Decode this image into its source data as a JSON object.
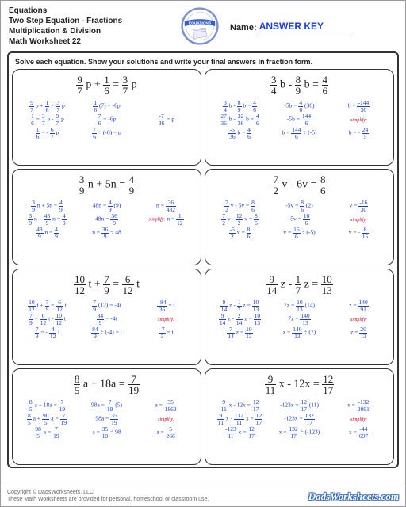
{
  "header": {
    "line1": "Equations",
    "line2": "Two Step Equation - Fractions",
    "line3": "Multiplication & Division",
    "line4": "Math Worksheet 22",
    "name_label": "Name:",
    "answer_key": "ANSWER KEY"
  },
  "instructions": "Solve each equation.  Show your solutions and write your final answers in fraction form.",
  "logo": {
    "banner_text": "EQUATIONS",
    "banner_color": "#3a5fc8",
    "ring_color": "#7a8fd8"
  },
  "problems": [
    {
      "eq_html": "<span class='frac eq-frac'><span class='n'>9</span><span class='d'>7</span></span> p + <span class='frac eq-frac'><span class='n'>1</span><span class='d'>6</span></span> = <span class='frac eq-frac'><span class='n'>3</span><span class='d'>7</span></span> p",
      "rows": [
        [
          "<span class='frac'><span class='n'>9</span><span class='d'>7</span></span> p + <span class='frac'><span class='n'>1</span><span class='d'>6</span></span> = <span class='frac'><span class='n'>3</span><span class='d'>7</span></span> p",
          "<span class='frac'><span class='n'>1</span><span class='d'>6</span></span> (7) = -6p",
          ""
        ],
        [
          "<span class='frac'><span class='n'>1</span><span class='d'>6</span></span> = <span class='frac'><span class='n'>3</span><span class='d'>7</span></span> p - <span class='frac'><span class='n'>9</span><span class='d'>7</span></span> p",
          "<span class='frac'><span class='n'>7</span><span class='d'>6</span></span> = -6p",
          "<span class='frac'><span class='n'>-7</span><span class='d'>36</span></span> = p"
        ],
        [
          "<span class='frac'><span class='n'>1</span><span class='d'>6</span></span> = - <span class='frac'><span class='n'>6</span><span class='d'>7</span></span> p",
          "<span class='frac'><span class='n'>7</span><span class='d'>6</span></span> ÷ (-6) = p",
          ""
        ]
      ]
    },
    {
      "eq_html": "<span class='frac eq-frac'><span class='n'>3</span><span class='d'>4</span></span> b - <span class='frac eq-frac'><span class='n'>8</span><span class='d'>9</span></span> b = <span class='frac eq-frac'><span class='n'>4</span><span class='d'>6</span></span>",
      "rows": [
        [
          "<span class='frac'><span class='n'>3</span><span class='d'>4</span></span> b - <span class='frac'><span class='n'>8</span><span class='d'>9</span></span> b = <span class='frac'><span class='n'>4</span><span class='d'>6</span></span>",
          "-5b = <span class='frac'><span class='n'>4</span><span class='d'>6</span></span> (36)",
          "b = <span class='frac'><span class='n'>-144</span><span class='d'>30</span></span>"
        ],
        [
          "<span class='frac'><span class='n'>27</span><span class='d'>36</span></span> b - <span class='frac'><span class='n'>32</span><span class='d'>36</span></span> b = <span class='frac'><span class='n'>4</span><span class='d'>6</span></span>",
          "-5b = <span class='frac'><span class='n'>144</span><span class='d'>6</span></span>",
          "<span class='simplify'>simplify:</span>"
        ],
        [
          "<span class='frac'><span class='n'>-5</span><span class='d'>36</span></span> b = <span class='frac'><span class='n'>4</span><span class='d'>6</span></span>",
          "b = <span class='frac'><span class='n'>144</span><span class='d'>6</span></span> ÷ (-5)",
          "b = - <span class='frac'><span class='n'>24</span><span class='d'>5</span></span>"
        ]
      ]
    },
    {
      "eq_html": "<span class='frac eq-frac'><span class='n'>3</span><span class='d'>9</span></span> n + 5n = <span class='frac eq-frac'><span class='n'>4</span><span class='d'>9</span></span>",
      "rows": [
        [
          "<span class='frac'><span class='n'>3</span><span class='d'>9</span></span> n + 5n = <span class='frac'><span class='n'>4</span><span class='d'>9</span></span>",
          "48n = <span class='frac'><span class='n'>4</span><span class='d'>9</span></span> (9)",
          "n = <span class='frac'><span class='n'>36</span><span class='d'>432</span></span>"
        ],
        [
          "<span class='frac'><span class='n'>3</span><span class='d'>9</span></span> n + <span class='frac'><span class='n'>45</span><span class='d'>9</span></span> n = <span class='frac'><span class='n'>4</span><span class='d'>9</span></span>",
          "48n = <span class='frac'><span class='n'>36</span><span class='d'>9</span></span>",
          "<span class='simplify'>simplify:</span> n = <span class='frac'><span class='n'>1</span><span class='d'>12</span></span>"
        ],
        [
          "<span class='frac'><span class='n'>48</span><span class='d'>9</span></span> n = <span class='frac'><span class='n'>4</span><span class='d'>9</span></span>",
          "n = <span class='frac'><span class='n'>36</span><span class='d'>9</span></span> ÷ 48",
          ""
        ]
      ]
    },
    {
      "eq_html": "<span class='frac eq-frac'><span class='n'>7</span><span class='d'>2</span></span> v - 6v = <span class='frac eq-frac'><span class='n'>8</span><span class='d'>6</span></span>",
      "rows": [
        [
          "<span class='frac'><span class='n'>7</span><span class='d'>2</span></span> v - 6v = <span class='frac'><span class='n'>8</span><span class='d'>6</span></span>",
          "-5v = <span class='frac'><span class='n'>8</span><span class='d'>6</span></span> (2)",
          "v = <span class='frac'><span class='n'>-16</span><span class='d'>30</span></span>"
        ],
        [
          "<span class='frac'><span class='n'>7</span><span class='d'>2</span></span> v - <span class='frac'><span class='n'>12</span><span class='d'>2</span></span> v = <span class='frac'><span class='n'>8</span><span class='d'>6</span></span>",
          "-5v = <span class='frac'><span class='n'>16</span><span class='d'>6</span></span>",
          "<span class='simplify'>simplify:</span>"
        ],
        [
          "<span class='frac'><span class='n'>-5</span><span class='d'>2</span></span> v = <span class='frac'><span class='n'>8</span><span class='d'>6</span></span>",
          "v = <span class='frac'><span class='n'>16</span><span class='d'>6</span></span> ÷ (-5)",
          "v = - <span class='frac'><span class='n'>8</span><span class='d'>15</span></span>"
        ]
      ]
    },
    {
      "eq_html": "<span class='frac eq-frac'><span class='n'>10</span><span class='d'>12</span></span> t + <span class='frac eq-frac'><span class='n'>7</span><span class='d'>9</span></span> = <span class='frac eq-frac'><span class='n'>6</span><span class='d'>12</span></span> t",
      "rows": [
        [
          "<span class='frac'><span class='n'>10</span><span class='d'>12</span></span> t + <span class='frac'><span class='n'>7</span><span class='d'>9</span></span> = <span class='frac'><span class='n'>6</span><span class='d'>12</span></span> t",
          "<span class='frac'><span class='n'>7</span><span class='d'>9</span></span> (12) = -4t",
          "<span class='frac'><span class='n'>-84</span><span class='d'>36</span></span> = t"
        ],
        [
          "<span class='frac'><span class='n'>7</span><span class='d'>9</span></span> = <span class='frac'><span class='n'>6</span><span class='d'>12</span></span> t - <span class='frac'><span class='n'>10</span><span class='d'>12</span></span> t",
          "<span class='frac'><span class='n'>84</span><span class='d'>9</span></span> = -4t",
          "<span class='simplify'>simplify:</span>"
        ],
        [
          "<span class='frac'><span class='n'>7</span><span class='d'>9</span></span> = - <span class='frac'><span class='n'>4</span><span class='d'>12</span></span> t",
          "<span class='frac'><span class='n'>84</span><span class='d'>9</span></span> ÷ (-4) = t",
          "<span class='frac'><span class='n'>-7</span><span class='d'>3</span></span> = t"
        ]
      ]
    },
    {
      "eq_html": "<span class='frac eq-frac'><span class='n'>9</span><span class='d'>14</span></span> z - <span class='frac eq-frac'><span class='n'>1</span><span class='d'>7</span></span> z = <span class='frac eq-frac'><span class='n'>10</span><span class='d'>13</span></span>",
      "rows": [
        [
          "<span class='frac'><span class='n'>9</span><span class='d'>14</span></span> z - <span class='frac'><span class='n'>1</span><span class='d'>7</span></span> z = <span class='frac'><span class='n'>10</span><span class='d'>13</span></span>",
          "7z = <span class='frac'><span class='n'>10</span><span class='d'>13</span></span> (14)",
          "z = <span class='frac'><span class='n'>140</span><span class='d'>91</span></span>"
        ],
        [
          "<span class='frac'><span class='n'>9</span><span class='d'>14</span></span> z - <span class='frac'><span class='n'>2</span><span class='d'>14</span></span> z = <span class='frac'><span class='n'>10</span><span class='d'>13</span></span>",
          "7z = <span class='frac'><span class='n'>140</span><span class='d'>13</span></span>",
          "<span class='simplify'>simplify:</span>"
        ],
        [
          "<span class='frac'><span class='n'>7</span><span class='d'>14</span></span> z = <span class='frac'><span class='n'>10</span><span class='d'>13</span></span>",
          "z = <span class='frac'><span class='n'>140</span><span class='d'>13</span></span> ÷ (7)",
          "z = <span class='frac'><span class='n'>20</span><span class='d'>13</span></span>"
        ]
      ]
    },
    {
      "eq_html": "<span class='frac eq-frac'><span class='n'>8</span><span class='d'>5</span></span> a + 18a = <span class='frac eq-frac'><span class='n'>7</span><span class='d'>19</span></span>",
      "rows": [
        [
          "<span class='frac'><span class='n'>8</span><span class='d'>5</span></span> a + 18a = <span class='frac'><span class='n'>7</span><span class='d'>19</span></span>",
          "98a = <span class='frac'><span class='n'>7</span><span class='d'>19</span></span> (5)",
          "a = <span class='frac'><span class='n'>35</span><span class='d'>1862</span></span>"
        ],
        [
          "<span class='frac'><span class='n'>8</span><span class='d'>5</span></span> a + <span class='frac'><span class='n'>90</span><span class='d'>5</span></span> a = <span class='frac'><span class='n'>7</span><span class='d'>19</span></span>",
          "98a = <span class='frac'><span class='n'>35</span><span class='d'>19</span></span>",
          "<span class='simplify'>simplify:</span>"
        ],
        [
          "<span class='frac'><span class='n'>98</span><span class='d'>5</span></span> a = <span class='frac'><span class='n'>7</span><span class='d'>19</span></span>",
          "a = <span class='frac'><span class='n'>35</span><span class='d'>19</span></span> ÷ 98",
          "a = <span class='frac'><span class='n'>5</span><span class='d'>266</span></span>"
        ]
      ]
    },
    {
      "eq_html": "<span class='frac eq-frac'><span class='n'>9</span><span class='d'>11</span></span> x - 12x = <span class='frac eq-frac'><span class='n'>12</span><span class='d'>17</span></span>",
      "rows": [
        [
          "<span class='frac'><span class='n'>9</span><span class='d'>11</span></span> x - 12x = <span class='frac'><span class='n'>12</span><span class='d'>17</span></span>",
          "-123x = <span class='frac'><span class='n'>12</span><span class='d'>17</span></span> (11)",
          "x = <span class='frac'><span class='n'>-132</span><span class='d'>2091</span></span>"
        ],
        [
          "<span class='frac'><span class='n'>9</span><span class='d'>11</span></span> x - <span class='frac'><span class='n'>132</span><span class='d'>11</span></span> x = <span class='frac'><span class='n'>12</span><span class='d'>17</span></span>",
          "-123x = <span class='frac'><span class='n'>132</span><span class='d'>17</span></span>",
          "<span class='simplify'>simplify:</span>"
        ],
        [
          "<span class='frac'><span class='n'>-123</span><span class='d'>11</span></span> x = <span class='frac'><span class='n'>12</span><span class='d'>17</span></span>",
          "x = <span class='frac'><span class='n'>132</span><span class='d'>17</span></span> ÷ (-123)",
          "x = <span class='frac'><span class='n'>-44</span><span class='d'>697</span></span>"
        ]
      ]
    }
  ],
  "footer": {
    "copyright1": "Copyright © DadsWorksheets, LLC",
    "copyright2": "These Math Worksheets are provided for personal, homeschool or classroom use.",
    "brand": "DadsWorksheets.com"
  }
}
